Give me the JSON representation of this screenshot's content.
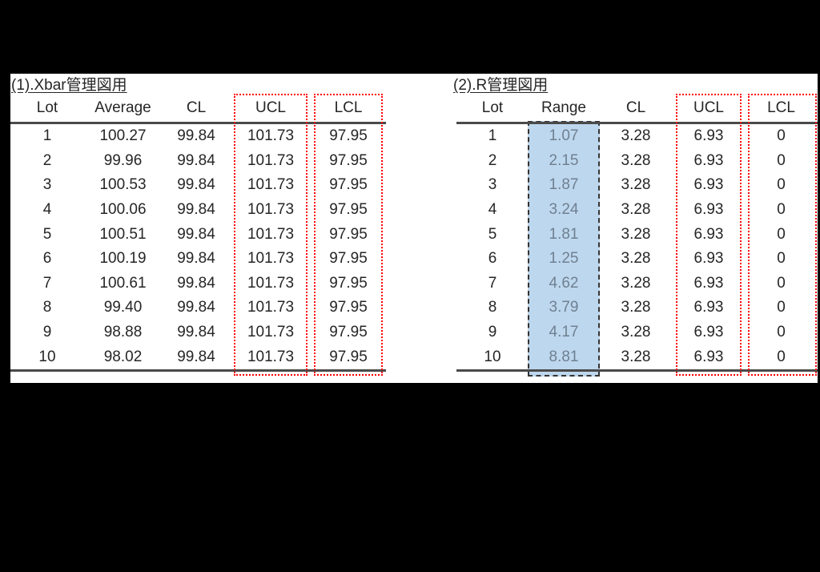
{
  "colors": {
    "canvas_background": "#000000",
    "sheet_background": "#ffffff",
    "text": "#262626",
    "rule_line": "#4a4a4a",
    "red_highlight_border": "#ff0000",
    "range_fill_blue": "#bdd7ee",
    "range_dashed_border": "#333333",
    "range_text_gray": "#708090"
  },
  "chart_data": [
    {
      "type": "table",
      "title": "(1).Xbar管理図用",
      "columns": [
        "Lot",
        "Average",
        "CL",
        "UCL",
        "LCL"
      ],
      "rows": [
        [
          "1",
          "100.27",
          "99.84",
          "101.73",
          "97.95"
        ],
        [
          "2",
          "99.96",
          "99.84",
          "101.73",
          "97.95"
        ],
        [
          "3",
          "100.53",
          "99.84",
          "101.73",
          "97.95"
        ],
        [
          "4",
          "100.06",
          "99.84",
          "101.73",
          "97.95"
        ],
        [
          "5",
          "100.51",
          "99.84",
          "101.73",
          "97.95"
        ],
        [
          "6",
          "100.19",
          "99.84",
          "101.73",
          "97.95"
        ],
        [
          "7",
          "100.61",
          "99.84",
          "101.73",
          "97.95"
        ],
        [
          "8",
          "99.40",
          "99.84",
          "101.73",
          "97.95"
        ],
        [
          "9",
          "98.88",
          "99.84",
          "101.73",
          "97.95"
        ],
        [
          "10",
          "98.02",
          "99.84",
          "101.73",
          "97.95"
        ]
      ],
      "annotations": {
        "ucl_column_outlined_red_dotted": true,
        "lcl_column_outlined_red_dotted": true
      }
    },
    {
      "type": "table",
      "title": "(2).R管理図用",
      "columns": [
        "Lot",
        "Range",
        "CL",
        "UCL",
        "LCL"
      ],
      "rows": [
        [
          "1",
          "1.07",
          "3.28",
          "6.93",
          "0"
        ],
        [
          "2",
          "2.15",
          "3.28",
          "6.93",
          "0"
        ],
        [
          "3",
          "1.87",
          "3.28",
          "6.93",
          "0"
        ],
        [
          "4",
          "3.24",
          "3.28",
          "6.93",
          "0"
        ],
        [
          "5",
          "1.81",
          "3.28",
          "6.93",
          "0"
        ],
        [
          "6",
          "1.25",
          "3.28",
          "6.93",
          "0"
        ],
        [
          "7",
          "4.62",
          "3.28",
          "6.93",
          "0"
        ],
        [
          "8",
          "3.79",
          "3.28",
          "6.93",
          "0"
        ],
        [
          "9",
          "4.17",
          "3.28",
          "6.93",
          "0"
        ],
        [
          "10",
          "8.81",
          "3.28",
          "6.93",
          "0"
        ]
      ],
      "annotations": {
        "range_column_filled_blue_dashed": true,
        "ucl_column_outlined_red_dotted": true,
        "lcl_column_outlined_red_dotted": true
      }
    }
  ]
}
